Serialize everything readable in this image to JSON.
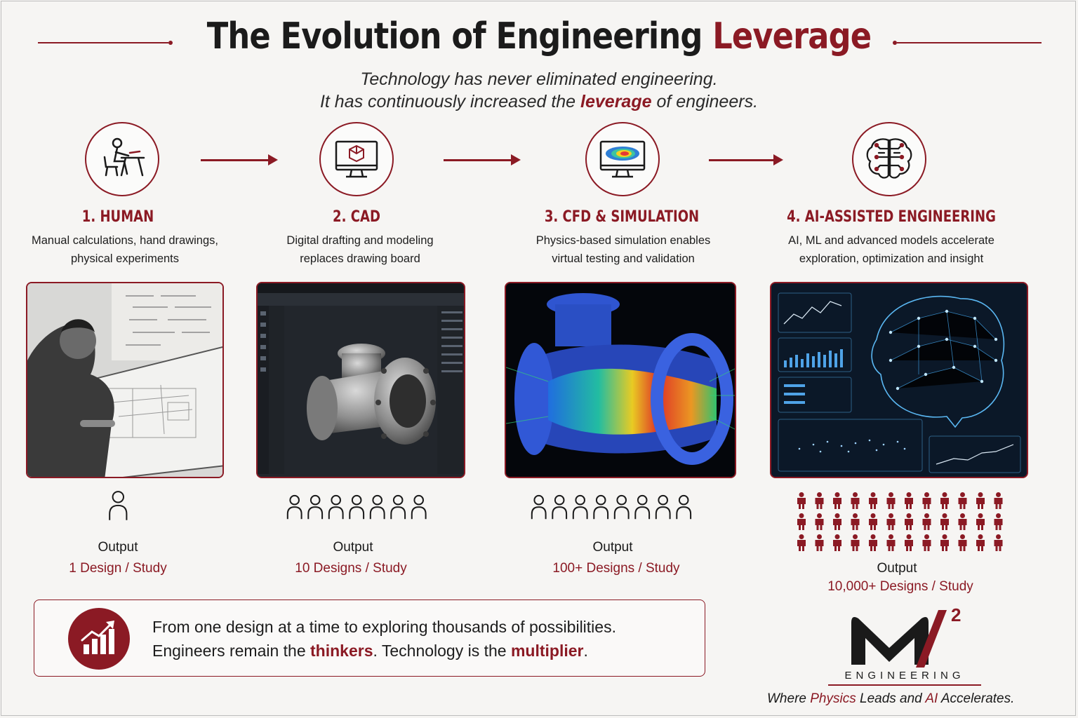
{
  "header": {
    "title_main": "The Evolution of Engineering",
    "title_accent": "Leverage",
    "subtitle_line1": "Technology has never eliminated engineering.",
    "subtitle_line2_before": "It has continuously increased the",
    "subtitle_line2_accent": "leverage",
    "subtitle_line2_after": "of engineers."
  },
  "steps": [
    {
      "title": "1. HUMAN",
      "desc_line1": "Manual calculations, hand drawings,",
      "desc_line2": "physical experiments",
      "output_label": "Output",
      "output_value": "1 Design / Study",
      "icon": "person-at-desk-icon",
      "people_count": 1
    },
    {
      "title": "2. CAD",
      "desc_line1": "Digital drafting and modeling",
      "desc_line2": "replaces drawing board",
      "output_label": "Output",
      "output_value": "10 Designs / Study",
      "icon": "cad-monitor-icon",
      "people_count": 7
    },
    {
      "title": "3. CFD & SIMULATION",
      "desc_line1": "Physics-based simulation enables",
      "desc_line2": "virtual testing and validation",
      "output_label": "Output",
      "output_value": "100+ Designs / Study",
      "icon": "simulation-monitor-icon",
      "people_count": 8
    },
    {
      "title": "4. AI-ASSISTED ENGINEERING",
      "desc_line1": "AI, ML and advanced models accelerate",
      "desc_line2": "exploration, optimization and insight",
      "output_label": "Output",
      "output_value": "10,000+ Designs / Study",
      "icon": "ai-brain-icon",
      "people_count": 36
    }
  ],
  "quote": {
    "line1": "From one design at a time to exploring thousands of possibilities.",
    "line2_a": "Engineers remain the",
    "line2_b": "thinkers",
    "line2_c": ". Technology is the",
    "line2_d": "multiplier",
    "line2_e": "."
  },
  "brand": {
    "logo_letter": "M",
    "logo_superscript": "2",
    "logo_word": "ENGINEERING",
    "tagline_a": "Where",
    "tagline_b": "Physics",
    "tagline_c": "Leads and",
    "tagline_d": "AI",
    "tagline_e": "Accelerates."
  },
  "colors": {
    "accent": "#8b1a24",
    "background": "#f6f5f3"
  }
}
